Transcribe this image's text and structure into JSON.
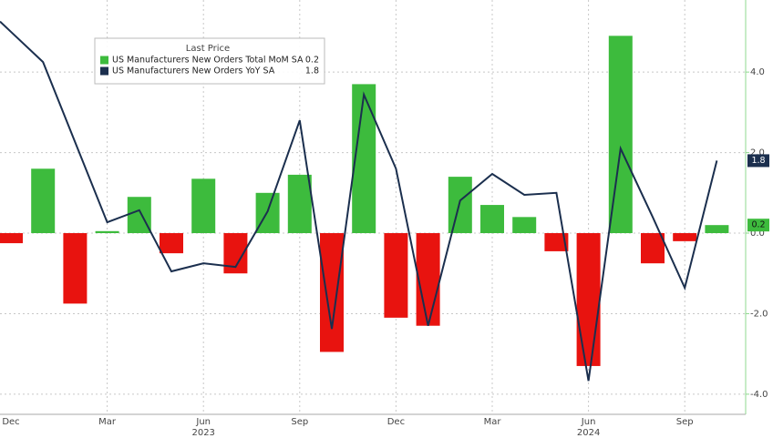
{
  "chart_data": {
    "type": "bar_line",
    "legend_title": "Last Price",
    "categories": [
      "Dec",
      null,
      null,
      "Mar",
      null,
      null,
      "Jun",
      null,
      null,
      "Sep",
      null,
      null,
      "Dec",
      null,
      null,
      "Mar",
      null,
      null,
      "Jun",
      null,
      null,
      "Sep",
      null
    ],
    "years": [
      "2023",
      "2024"
    ],
    "series": [
      {
        "name": "US Manufacturers New Orders Total MoM SA",
        "type": "bar",
        "color": "#3dbb3d",
        "negative_color": "#e8130f",
        "values": [
          -0.25,
          1.6,
          -1.75,
          0.05,
          0.9,
          -0.5,
          1.35,
          -1.0,
          1.0,
          1.45,
          -2.95,
          3.7,
          -2.1,
          -2.3,
          1.4,
          0.7,
          0.4,
          -0.45,
          -3.3,
          4.9,
          -0.75,
          -0.2,
          0.2
        ]
      },
      {
        "name": "US Manufacturers New Orders YoY SA",
        "type": "line",
        "color": "#1b2f4e",
        "values": [
          5.0,
          4.25,
          2.26,
          0.27,
          0.57,
          -0.95,
          -0.75,
          -0.84,
          0.54,
          2.8,
          -2.38,
          3.44,
          1.6,
          -2.3,
          0.81,
          1.47,
          0.95,
          1.0,
          -3.67,
          2.1,
          0.4,
          -1.36,
          1.8
        ]
      }
    ],
    "ylim": [
      -4.5,
      5.79
    ],
    "yticks": [
      {
        "value": 4,
        "label": "4.0"
      },
      {
        "value": 2,
        "label": "2.0"
      },
      {
        "value": 0,
        "label": "0.0"
      },
      {
        "value": -2,
        "label": "-2.0"
      },
      {
        "value": -4,
        "label": "-4.0"
      }
    ],
    "grid": true
  }
}
